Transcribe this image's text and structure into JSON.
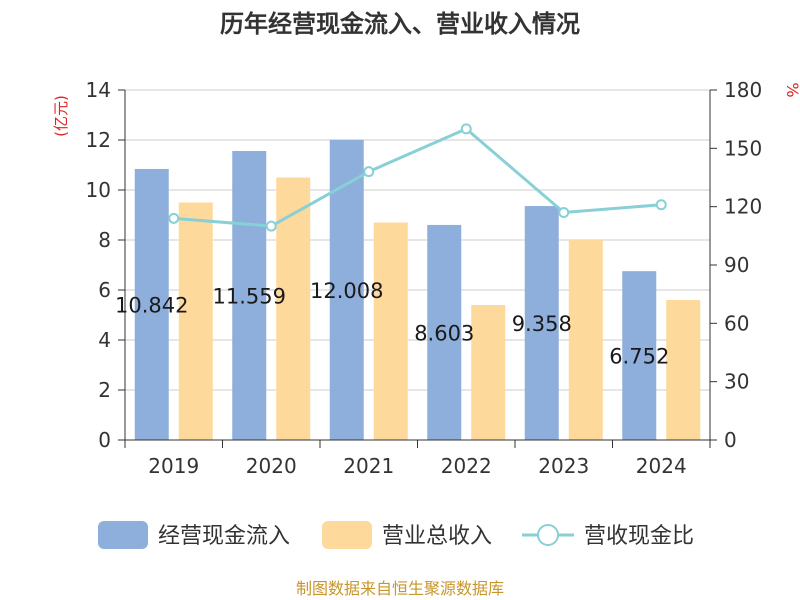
{
  "chart_data": {
    "type": "bar",
    "title": "历年经营现金流入、营业收入情况",
    "categories": [
      "2019",
      "2020",
      "2021",
      "2022",
      "2023",
      "2024"
    ],
    "series": [
      {
        "name": "经营现金流入",
        "kind": "bar",
        "axis": "left",
        "color": "#8eaedc",
        "values": [
          10.842,
          11.559,
          12.008,
          8.603,
          9.358,
          6.752
        ],
        "labels": [
          "10.842",
          "11.559",
          "12.008",
          "8.603",
          "9.358",
          "6.752"
        ]
      },
      {
        "name": "营业总收入",
        "kind": "bar",
        "axis": "left",
        "color": "#fdd99b",
        "values": [
          9.5,
          10.5,
          8.7,
          5.4,
          8.0,
          5.6
        ]
      },
      {
        "name": "营收现金比",
        "kind": "line",
        "axis": "right",
        "color": "#88d0d6",
        "values": [
          114,
          110,
          138,
          160,
          117,
          121
        ]
      }
    ],
    "y_left": {
      "label": "(亿元)",
      "min": 0,
      "max": 14,
      "ticks": [
        "0",
        "2",
        "4",
        "6",
        "8",
        "10",
        "12",
        "14"
      ]
    },
    "y_right": {
      "label": "%",
      "min": 0,
      "max": 180,
      "ticks": [
        "0",
        "30",
        "60",
        "90",
        "120",
        "150",
        "180"
      ]
    },
    "grid": true,
    "legend": "bottom"
  },
  "source": "制图数据来自恒生聚源数据库"
}
